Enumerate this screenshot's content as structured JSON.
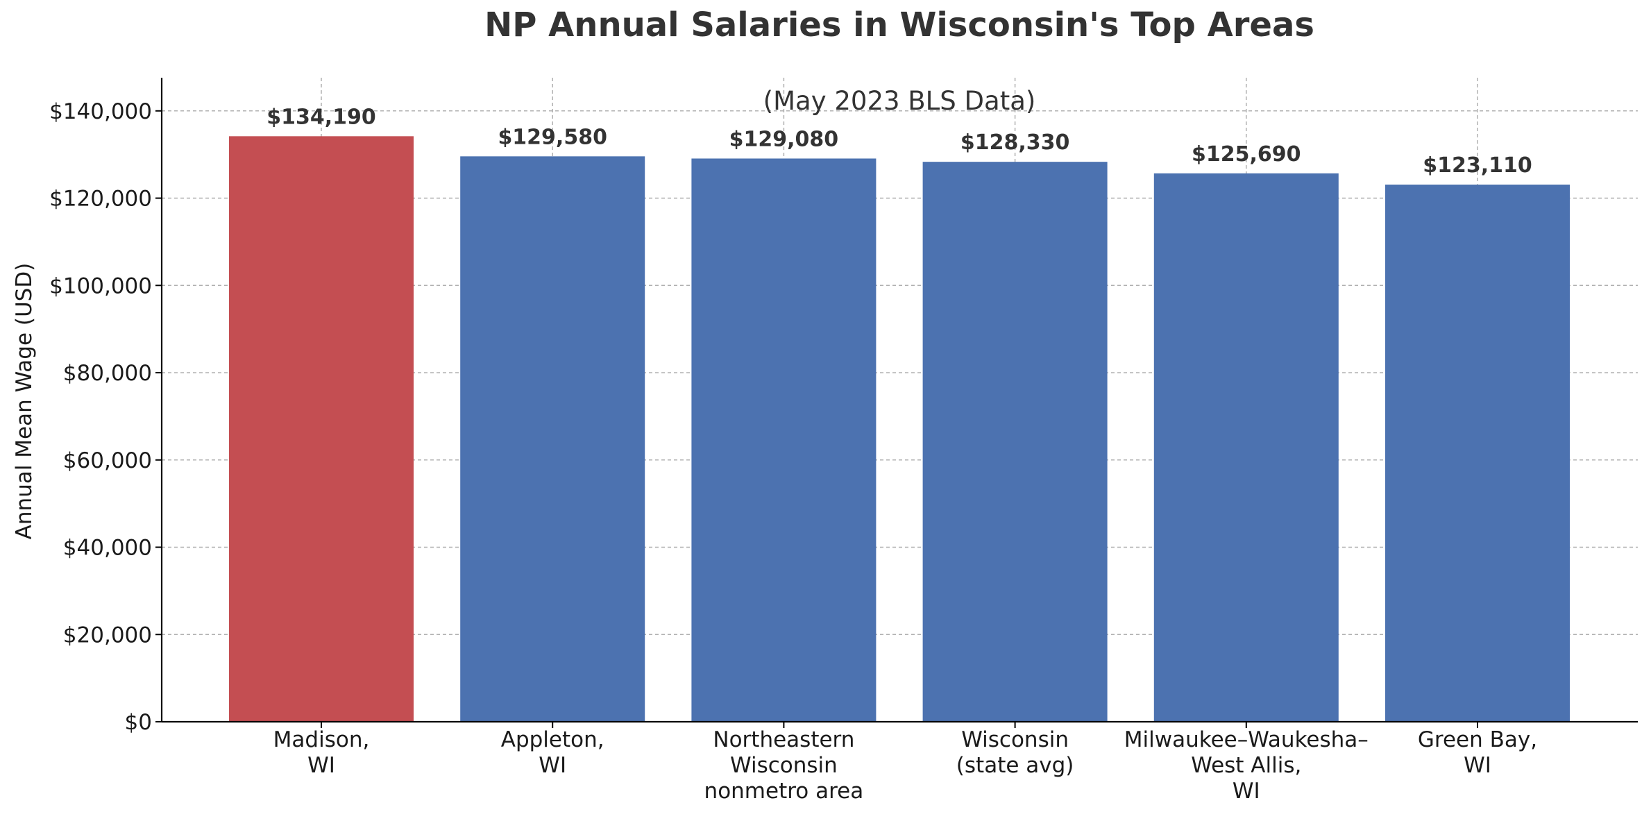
{
  "chart_data": {
    "type": "bar",
    "title": "NP Annual Salaries in Wisconsin's Top Areas",
    "subtitle": "(May 2023 BLS Data)",
    "xlabel": "",
    "ylabel": "Annual Mean Wage (USD)",
    "categories": [
      [
        "Madison,",
        "WI"
      ],
      [
        "Appleton,",
        "WI"
      ],
      [
        "Northeastern",
        "Wisconsin",
        "nonmetro area"
      ],
      [
        "Wisconsin",
        "(state avg)"
      ],
      [
        "Milwaukee–Waukesha–",
        "West Allis,",
        "WI"
      ],
      [
        "Green Bay,",
        "WI"
      ]
    ],
    "values": [
      134190,
      129580,
      129080,
      128330,
      125690,
      123110
    ],
    "value_labels": [
      "$134,190",
      "$129,580",
      "$129,080",
      "$128,330",
      "$125,690",
      "$123,110"
    ],
    "bar_colors": [
      "#c44e52",
      "#4c72b0",
      "#4c72b0",
      "#4c72b0",
      "#4c72b0",
      "#4c72b0"
    ],
    "ylim": [
      0,
      147600
    ],
    "yticks": [
      0,
      20000,
      40000,
      60000,
      80000,
      100000,
      120000,
      140000
    ],
    "ytick_labels": [
      "$0",
      "$20,000",
      "$40,000",
      "$60,000",
      "$80,000",
      "$100,000",
      "$120,000",
      "$140,000"
    ],
    "grid": true,
    "grid_style": "dashed",
    "colors": {
      "highlight": "#c44e52",
      "bar": "#4c72b0",
      "grid": "#b0b0b0",
      "axis": "#000000",
      "text": "#333333"
    }
  }
}
